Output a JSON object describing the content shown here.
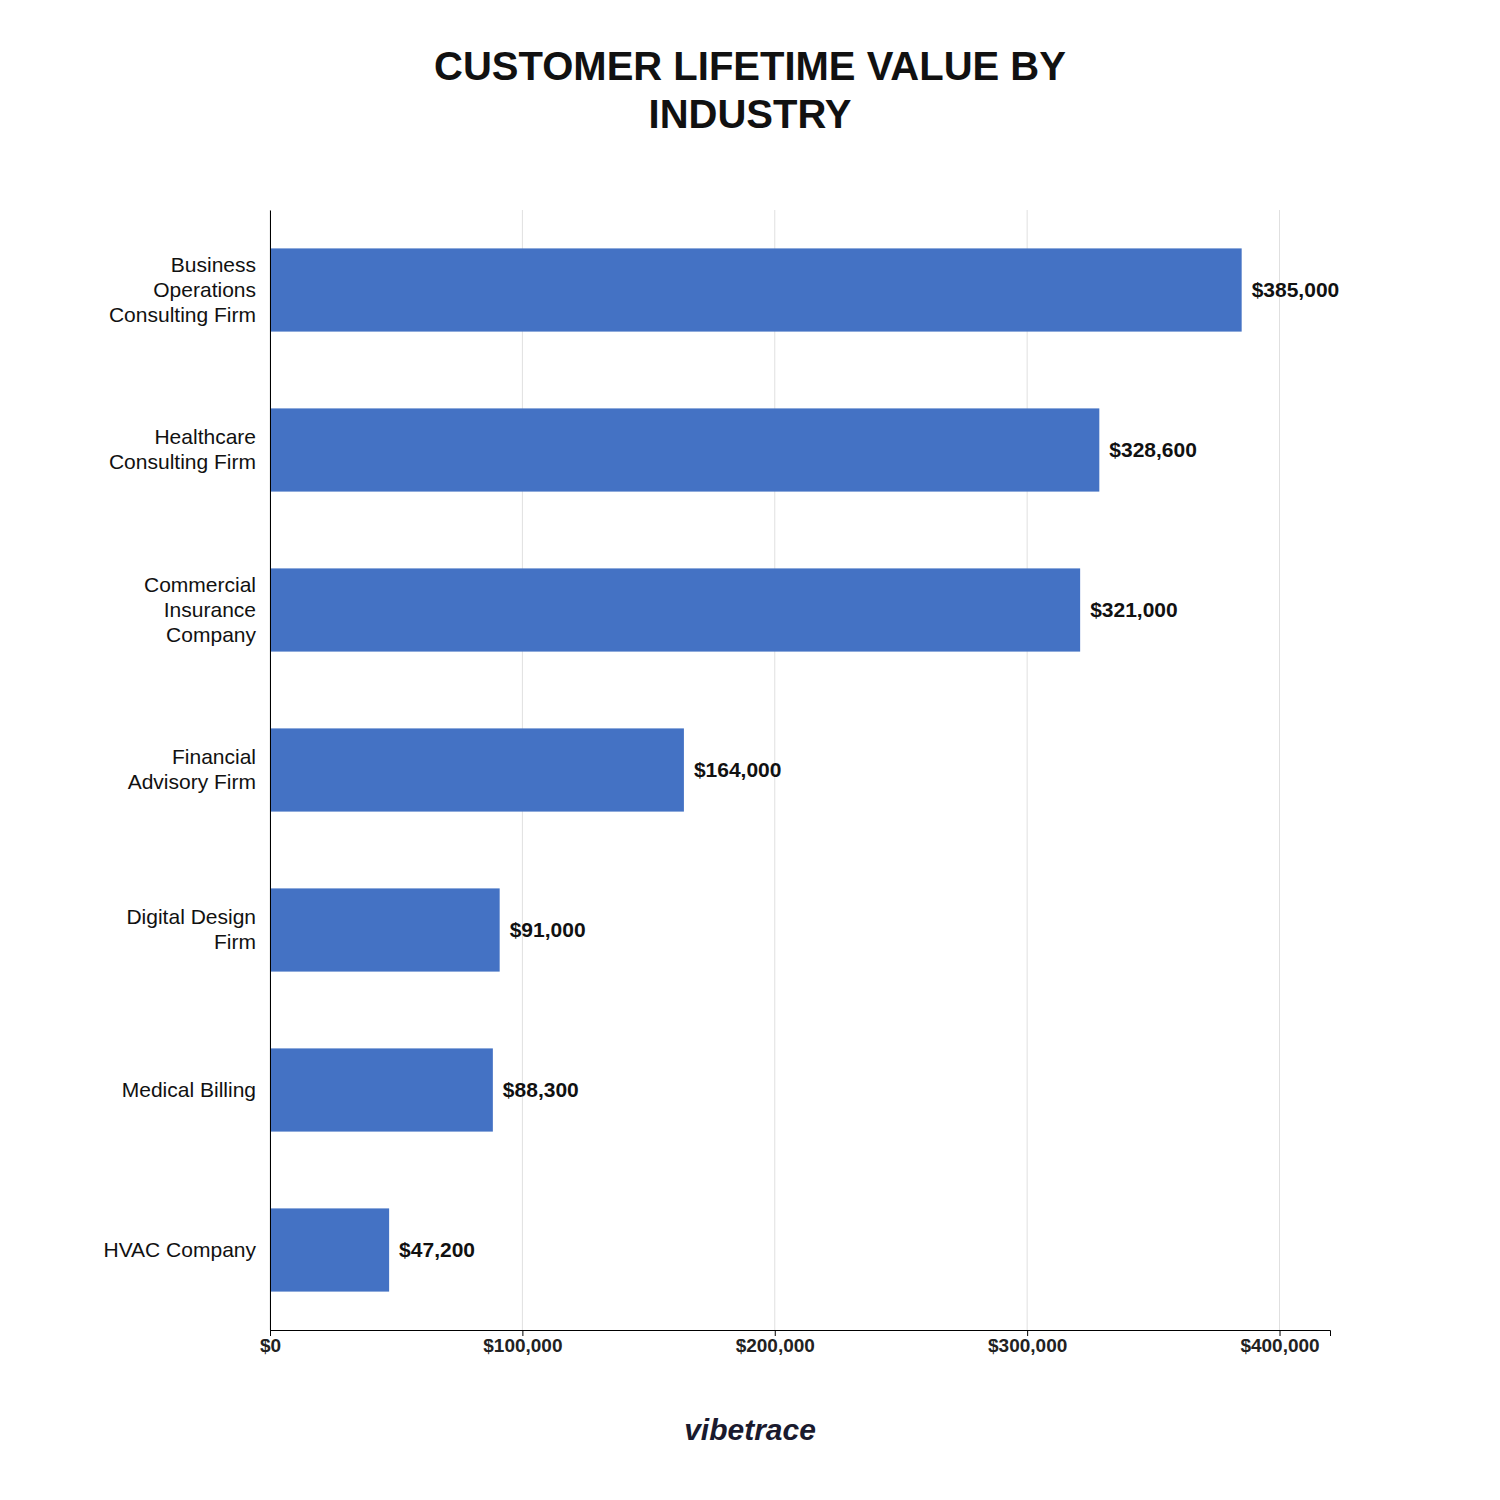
{
  "chart_data": {
    "type": "bar",
    "orientation": "horizontal",
    "title": "CUSTOMER LIFETIME VALUE BY\nINDUSTRY",
    "categories": [
      "Business\nOperations\nConsulting Firm",
      "Healthcare\nConsulting Firm",
      "Commercial\nInsurance\nCompany",
      "Financial\nAdvisory Firm",
      "Digital Design\nFirm",
      "Medical Billing",
      "HVAC Company"
    ],
    "values": [
      385000,
      328600,
      321000,
      164000,
      91000,
      88300,
      47200
    ],
    "value_labels": [
      "$385,000",
      "$328,600",
      "$321,000",
      "$164,000",
      "$91,000",
      "$88,300",
      "$47,200"
    ],
    "data_labels": true,
    "color": "#4472C4",
    "xlim": [
      0,
      420000
    ],
    "xticks": [
      {
        "value": 0,
        "label": "$0"
      },
      {
        "value": 100000,
        "label": "$100,000"
      },
      {
        "value": 200000,
        "label": "$200,000"
      },
      {
        "value": 300000,
        "label": "$300,000"
      },
      {
        "value": 400000,
        "label": "$400,000"
      }
    ],
    "grid": true,
    "annotations": [
      "vibetrace"
    ]
  }
}
